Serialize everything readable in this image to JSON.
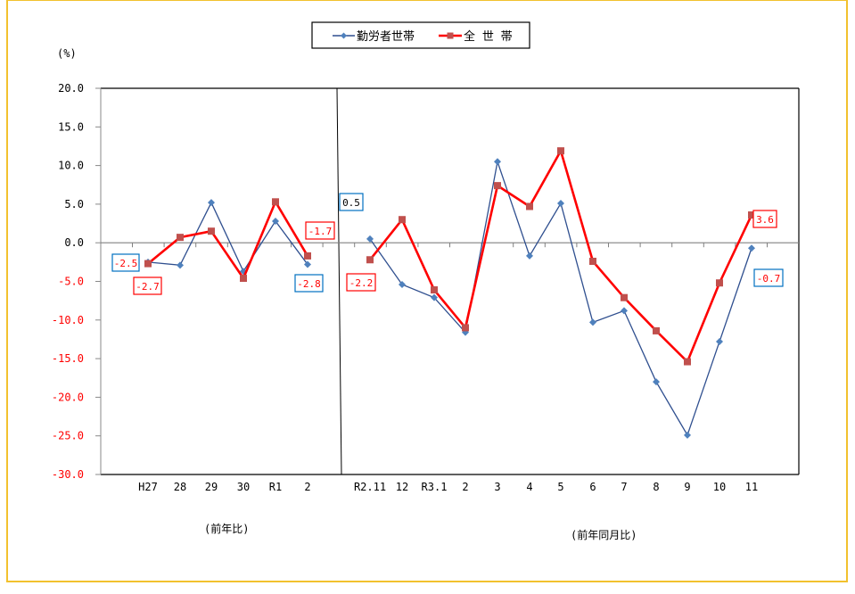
{
  "chart_data": {
    "type": "line",
    "title": "",
    "ylabel": "(%)",
    "xlabel": "",
    "ylim": [
      -30.0,
      20.0
    ],
    "yticks": [
      "20.0",
      "15.0",
      "10.0",
      "5.0",
      "0.0",
      "-5.0",
      "-10.0",
      "-15.0",
      "-20.0",
      "-25.0",
      "-30.0"
    ],
    "grid": false,
    "legend_position": "top",
    "panels": [
      {
        "caption": "(前年比)",
        "categories": [
          "H27",
          "28",
          "29",
          "30",
          "R1",
          "2"
        ],
        "series": [
          {
            "name": "勤労者世帯",
            "values": [
              -2.5,
              -2.9,
              5.2,
              -3.7,
              2.8,
              -2.8
            ]
          },
          {
            "name": "全 世 帯",
            "values": [
              -2.7,
              0.7,
              1.5,
              -4.6,
              5.3,
              -1.7
            ]
          }
        ]
      },
      {
        "caption": "(前年同月比)",
        "categories": [
          "R2.11",
          "12",
          "R3.1",
          "2",
          "3",
          "4",
          "5",
          "6",
          "7",
          "8",
          "9",
          "10",
          "11"
        ],
        "series": [
          {
            "name": "勤労者世帯",
            "values": [
              0.5,
              -5.4,
              -7.1,
              -11.6,
              10.5,
              -1.7,
              5.1,
              -10.3,
              -8.8,
              -18.0,
              -24.9,
              -12.8,
              -0.7
            ]
          },
          {
            "name": "全 世 帯",
            "values": [
              -2.2,
              3.0,
              -6.1,
              -11.0,
              7.4,
              4.7,
              11.9,
              -2.4,
              -7.1,
              -11.4,
              -15.4,
              -5.2,
              3.6
            ]
          }
        ]
      }
    ],
    "data_labels": [
      {
        "series": "勤労者世帯",
        "category": "H27",
        "text": "-2.5"
      },
      {
        "series": "全 世 帯",
        "category": "H27",
        "text": "-2.7"
      },
      {
        "series": "全 世 帯",
        "category": "2",
        "text": "-1.7"
      },
      {
        "series": "勤労者世帯",
        "category": "2",
        "text": "-2.8"
      },
      {
        "series": "勤労者世帯",
        "category": "R2.11",
        "text": "0.5"
      },
      {
        "series": "全 世 帯",
        "category": "R2.11",
        "text": "-2.2"
      },
      {
        "series": "全 世 帯",
        "category": "11",
        "text": "3.6"
      },
      {
        "series": "勤労者世帯",
        "category": "11",
        "text": "-0.7"
      }
    ]
  },
  "legend": {
    "items": [
      {
        "label": "勤労者世帯",
        "color": "#2f4f8f",
        "marker_color": "#4f81bd",
        "marker": "diamond"
      },
      {
        "label": "全 世 帯",
        "color": "#ff0000",
        "marker_color": "#c0504d",
        "marker": "square"
      }
    ]
  },
  "axis": {
    "unit_label": "(%)",
    "positive_tick_color": "#000000",
    "negative_tick_color": "#ff0000"
  },
  "colors": {
    "frame_border": "#f2c12e",
    "worker_line": "#2f4f8f",
    "worker_marker": "#4f81bd",
    "all_line": "#ff0000",
    "all_marker": "#c0504d",
    "zero_line": "#808080",
    "label_blue_box": "#0070c0",
    "label_red_box": "#ff0000"
  }
}
